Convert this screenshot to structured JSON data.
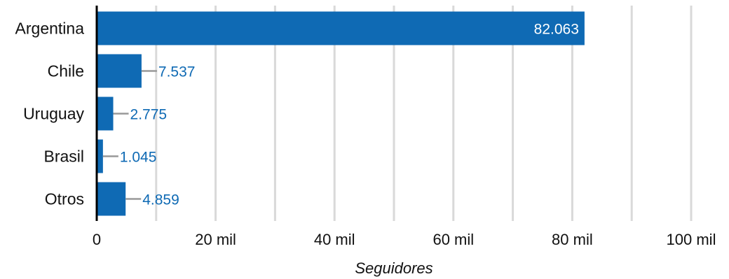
{
  "chart_data": {
    "type": "bar",
    "orientation": "horizontal",
    "categories": [
      "Argentina",
      "Chile",
      "Uruguay",
      "Brasil",
      "Otros"
    ],
    "values": [
      82063,
      7537,
      2775,
      1045,
      4859
    ],
    "value_labels": [
      "82.063",
      "7.537",
      "2.775",
      "1.045",
      "4.859"
    ],
    "xlabel": "Seguidores",
    "ylabel": "",
    "xlim": [
      0,
      100000
    ],
    "xticks": [
      0,
      20000,
      40000,
      60000,
      80000,
      100000
    ],
    "xtick_labels": [
      "0",
      "20 mil",
      "40 mil",
      "60 mil",
      "80 mil",
      "100 mil"
    ],
    "grid": "vertical",
    "legend": "none",
    "colors": {
      "bar": "#0f6ab4",
      "grid": "#d9d9d9",
      "axis": "#000000",
      "leader": "#999999",
      "outside_label": "#0f6ab4"
    }
  }
}
